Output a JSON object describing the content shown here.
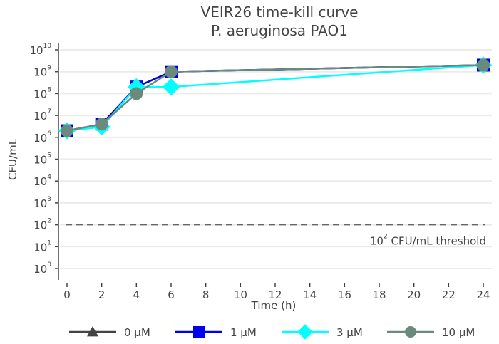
{
  "chart_data": {
    "type": "line",
    "title": "VEIR26 time-kill curve",
    "subtitle": "P. aeruginosa PAO1",
    "xlabel": "Time (h)",
    "ylabel": "CFU/mL",
    "yscale": "log",
    "xlim": [
      0,
      24
    ],
    "ylim": [
      1,
      10000000000
    ],
    "x_ticks": [
      0,
      2,
      4,
      6,
      8,
      10,
      12,
      14,
      16,
      18,
      20,
      22,
      24
    ],
    "y_tick_exponents": [
      0,
      1,
      2,
      3,
      4,
      5,
      6,
      7,
      8,
      9,
      10
    ],
    "y_tick_base": "10",
    "grid": true,
    "legend_position": "bottom",
    "x": [
      0,
      2,
      4,
      6,
      24
    ],
    "series": [
      {
        "name": "0 µM",
        "color": "#444444",
        "marker": "triangle",
        "values": [
          2000000,
          4000000,
          200000000,
          1000000000,
          2000000000
        ]
      },
      {
        "name": "1 µM",
        "color": "#0000ee",
        "marker": "square",
        "values": [
          2000000,
          4000000,
          200000000,
          1000000000,
          2000000000
        ]
      },
      {
        "name": "3 µM",
        "color": "#00ffff",
        "marker": "diamond",
        "values": [
          2000000,
          3000000,
          200000000,
          200000000,
          2000000000
        ]
      },
      {
        "name": "10 µM",
        "color": "#6b8a7e",
        "marker": "circle",
        "values": [
          2000000,
          4000000,
          100000000,
          1000000000,
          2000000000
        ]
      }
    ],
    "annotations": [
      {
        "type": "hline",
        "y": 100,
        "style": "dashed",
        "color": "#666666",
        "label_base": "10",
        "label_exp": "2",
        "label_text": " CFU/mL threshold"
      }
    ]
  }
}
